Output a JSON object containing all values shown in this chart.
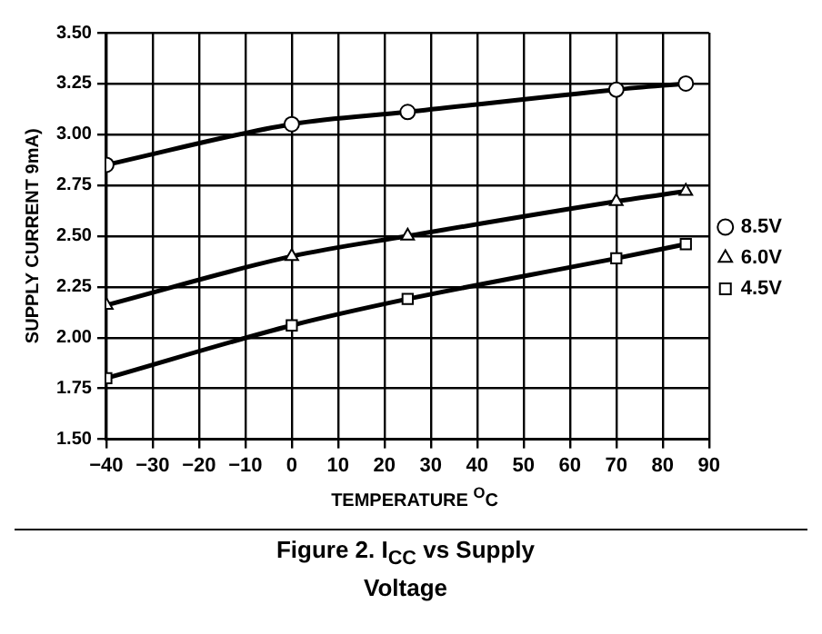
{
  "chart_data": {
    "type": "line",
    "title": "Figure 2.   I$_{CC}$ vs Supply Voltage",
    "xlabel": "TEMPERATURE $^{O}$C",
    "ylabel": "SUPPLY CURRENT 9mA)",
    "x": [
      -40,
      0,
      25,
      70,
      85
    ],
    "series": [
      {
        "name": "8.5V",
        "color": "#000000",
        "marker": "circle",
        "values": [
          2.85,
          3.05,
          3.11,
          3.22,
          3.25
        ]
      },
      {
        "name": "6.0V",
        "color": "#000000",
        "marker": "triangle",
        "values": [
          2.16,
          2.4,
          2.5,
          2.67,
          2.72
        ]
      },
      {
        "name": "4.5V",
        "color": "#000000",
        "marker": "square",
        "values": [
          1.8,
          2.06,
          2.19,
          2.39,
          2.46
        ]
      }
    ],
    "xlim": [
      -40,
      90
    ],
    "xticks": [
      -40,
      -30,
      -20,
      -10,
      0,
      10,
      20,
      30,
      40,
      50,
      60,
      70,
      80,
      90
    ],
    "ylim": [
      1.5,
      3.5
    ],
    "yticks": [
      {
        "value": 1.5,
        "label": "1.50"
      },
      1.75,
      {
        "value": 2,
        "label": "2.00"
      },
      2.25,
      {
        "value": 2.5,
        "label": "2.50"
      },
      2.75,
      {
        "value": 3,
        "label": "3.00"
      },
      3.25,
      {
        "value": 3.5,
        "label": "3.50"
      }
    ],
    "grid": true,
    "legend": "right",
    "line_style": "solid"
  }
}
